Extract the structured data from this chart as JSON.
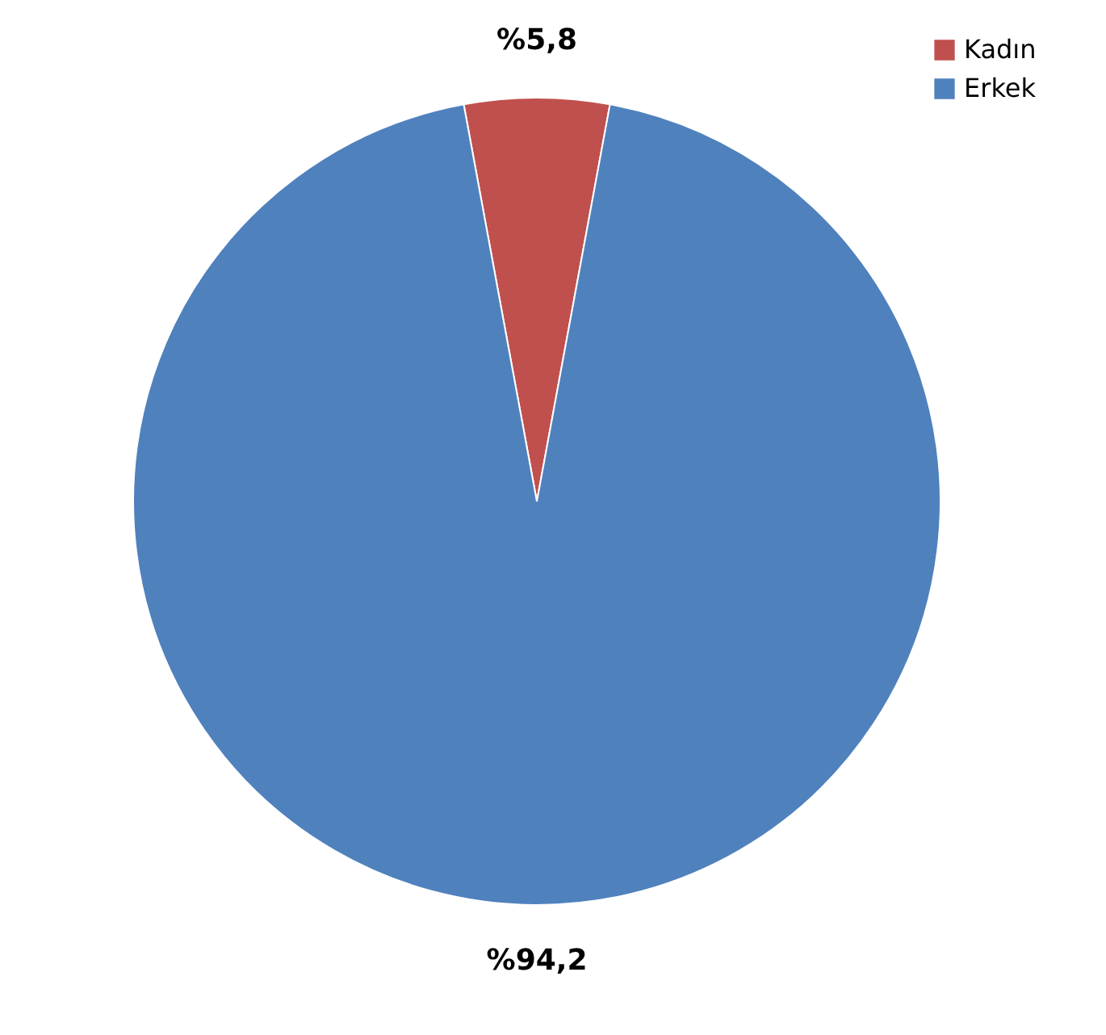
{
  "chart_data": {
    "type": "pie",
    "categories": [
      "Kadın",
      "Erkek"
    ],
    "values": [
      5.8,
      94.2
    ],
    "colors": [
      "#c0504d",
      "#4f81bd"
    ],
    "value_labels": [
      "%5,8",
      "%94,2"
    ],
    "legend": "top right"
  }
}
